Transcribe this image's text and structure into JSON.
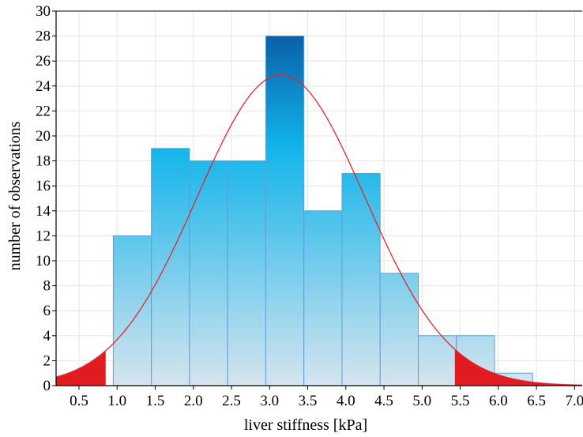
{
  "chart_data": {
    "type": "bar",
    "xlabel": "liver stiffness [kPa]",
    "ylabel": "number of observations",
    "xlim": [
      0.2,
      7.1
    ],
    "ylim": [
      0,
      30
    ],
    "x_ticks": [
      "0.5",
      "1.0",
      "1.5",
      "2.0",
      "2.5",
      "3.0",
      "3.5",
      "4.0",
      "4.5",
      "5.0",
      "5.5",
      "6.0",
      "6.5",
      "7.0"
    ],
    "y_ticks": [
      "0",
      "2",
      "4",
      "6",
      "8",
      "10",
      "12",
      "14",
      "16",
      "18",
      "20",
      "22",
      "24",
      "26",
      "28",
      "30"
    ],
    "bins": [
      {
        "x0": 0.95,
        "x1": 1.45,
        "count": 12
      },
      {
        "x0": 1.45,
        "x1": 1.95,
        "count": 19
      },
      {
        "x0": 1.95,
        "x1": 2.45,
        "count": 18
      },
      {
        "x0": 2.45,
        "x1": 2.95,
        "count": 18
      },
      {
        "x0": 2.95,
        "x1": 3.45,
        "count": 28
      },
      {
        "x0": 3.45,
        "x1": 3.95,
        "count": 14
      },
      {
        "x0": 3.95,
        "x1": 4.45,
        "count": 17
      },
      {
        "x0": 4.45,
        "x1": 4.95,
        "count": 9
      },
      {
        "x0": 4.95,
        "x1": 5.45,
        "count": 4
      },
      {
        "x0": 5.45,
        "x1": 5.95,
        "count": 4
      },
      {
        "x0": 5.95,
        "x1": 6.45,
        "count": 1
      }
    ],
    "normal_curve": {
      "mean": 3.15,
      "sd": 1.1,
      "peak": 24.9
    },
    "shaded_tails": {
      "lower_max": 0.85,
      "upper_min": 5.43
    },
    "grid": true,
    "colors": {
      "bar_top": "#0a5fa8",
      "bar_mid": "#12b4ea",
      "bar_bottom": "#d6e4ee",
      "bar_edge": "#5aa0d8",
      "curve": "#e8242a",
      "tail_fill": "#e11b22",
      "grid": "#e4e4e4"
    }
  }
}
